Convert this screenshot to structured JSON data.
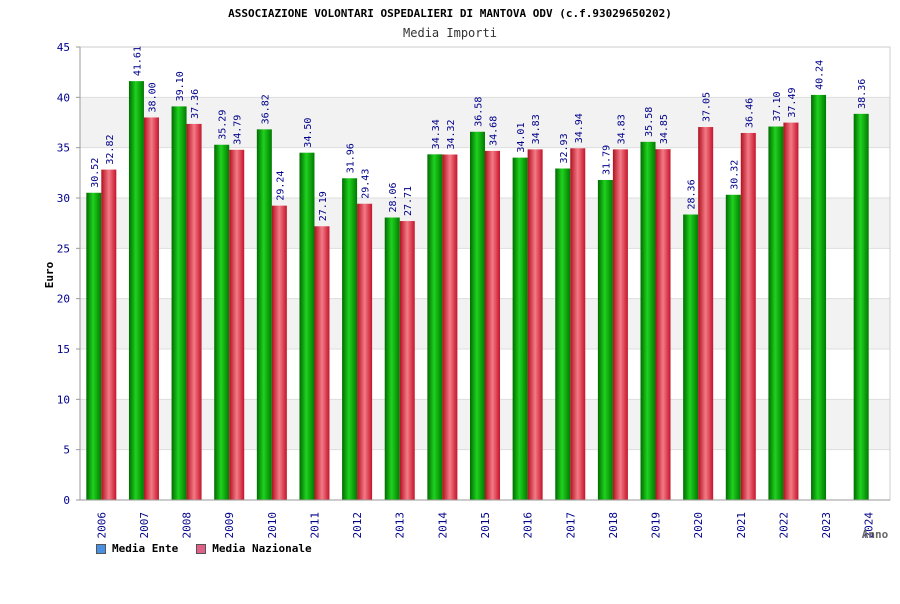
{
  "chart_data": {
    "type": "bar",
    "title": "ASSOCIAZIONE VOLONTARI OSPEDALIERI DI MANTOVA ODV (c.f.93029650202)",
    "subtitle": "Media Importi",
    "xlabel": "Anno",
    "ylabel": "Euro",
    "ylim": [
      0,
      45
    ],
    "yticks": [
      0,
      5,
      10,
      15,
      20,
      25,
      30,
      35,
      40,
      45
    ],
    "grid": true,
    "legend_position": "bottom-left",
    "categories": [
      "2006",
      "2007",
      "2008",
      "2009",
      "2010",
      "2011",
      "2012",
      "2013",
      "2014",
      "2015",
      "2016",
      "2017",
      "2018",
      "2019",
      "2020",
      "2021",
      "2022",
      "2023",
      "2024"
    ],
    "series": [
      {
        "name": "Media Ente",
        "color": "#00b400",
        "legend_color": "#4a90e2",
        "values": [
          30.52,
          41.61,
          39.1,
          35.29,
          36.82,
          34.5,
          31.96,
          28.06,
          34.34,
          36.58,
          34.01,
          32.93,
          31.79,
          35.58,
          28.36,
          30.32,
          37.1,
          40.24,
          38.36
        ],
        "labels": [
          "30.52",
          "41.61",
          "39.10",
          "35.29",
          "36.82",
          "34.50",
          "31.96",
          "28.06",
          "34.34",
          "36.58",
          "34.01",
          "32.93",
          "31.79",
          "35.58",
          "28.36",
          "30.32",
          "37.10",
          "40.24",
          "38.36"
        ]
      },
      {
        "name": "Media Nazionale",
        "color": "#e8283c",
        "legend_color": "#e06088",
        "values": [
          32.82,
          38.0,
          37.36,
          34.79,
          29.24,
          27.19,
          29.43,
          27.71,
          34.32,
          34.68,
          34.83,
          34.94,
          34.83,
          34.85,
          37.05,
          36.46,
          37.49,
          null,
          null
        ],
        "labels": [
          "32.82",
          "38.00",
          "37.36",
          "34.79",
          "29.24",
          "27.19",
          "29.43",
          "27.71",
          "34.32",
          "34.68",
          "34.83",
          "34.94",
          "34.83",
          "34.85",
          "37.05",
          "36.46",
          "37.49",
          null,
          null
        ]
      }
    ]
  },
  "legend": {
    "items": [
      {
        "label": "Media Ente",
        "color": "#4a90e2"
      },
      {
        "label": "Media Nazionale",
        "color": "#e06088"
      }
    ]
  }
}
